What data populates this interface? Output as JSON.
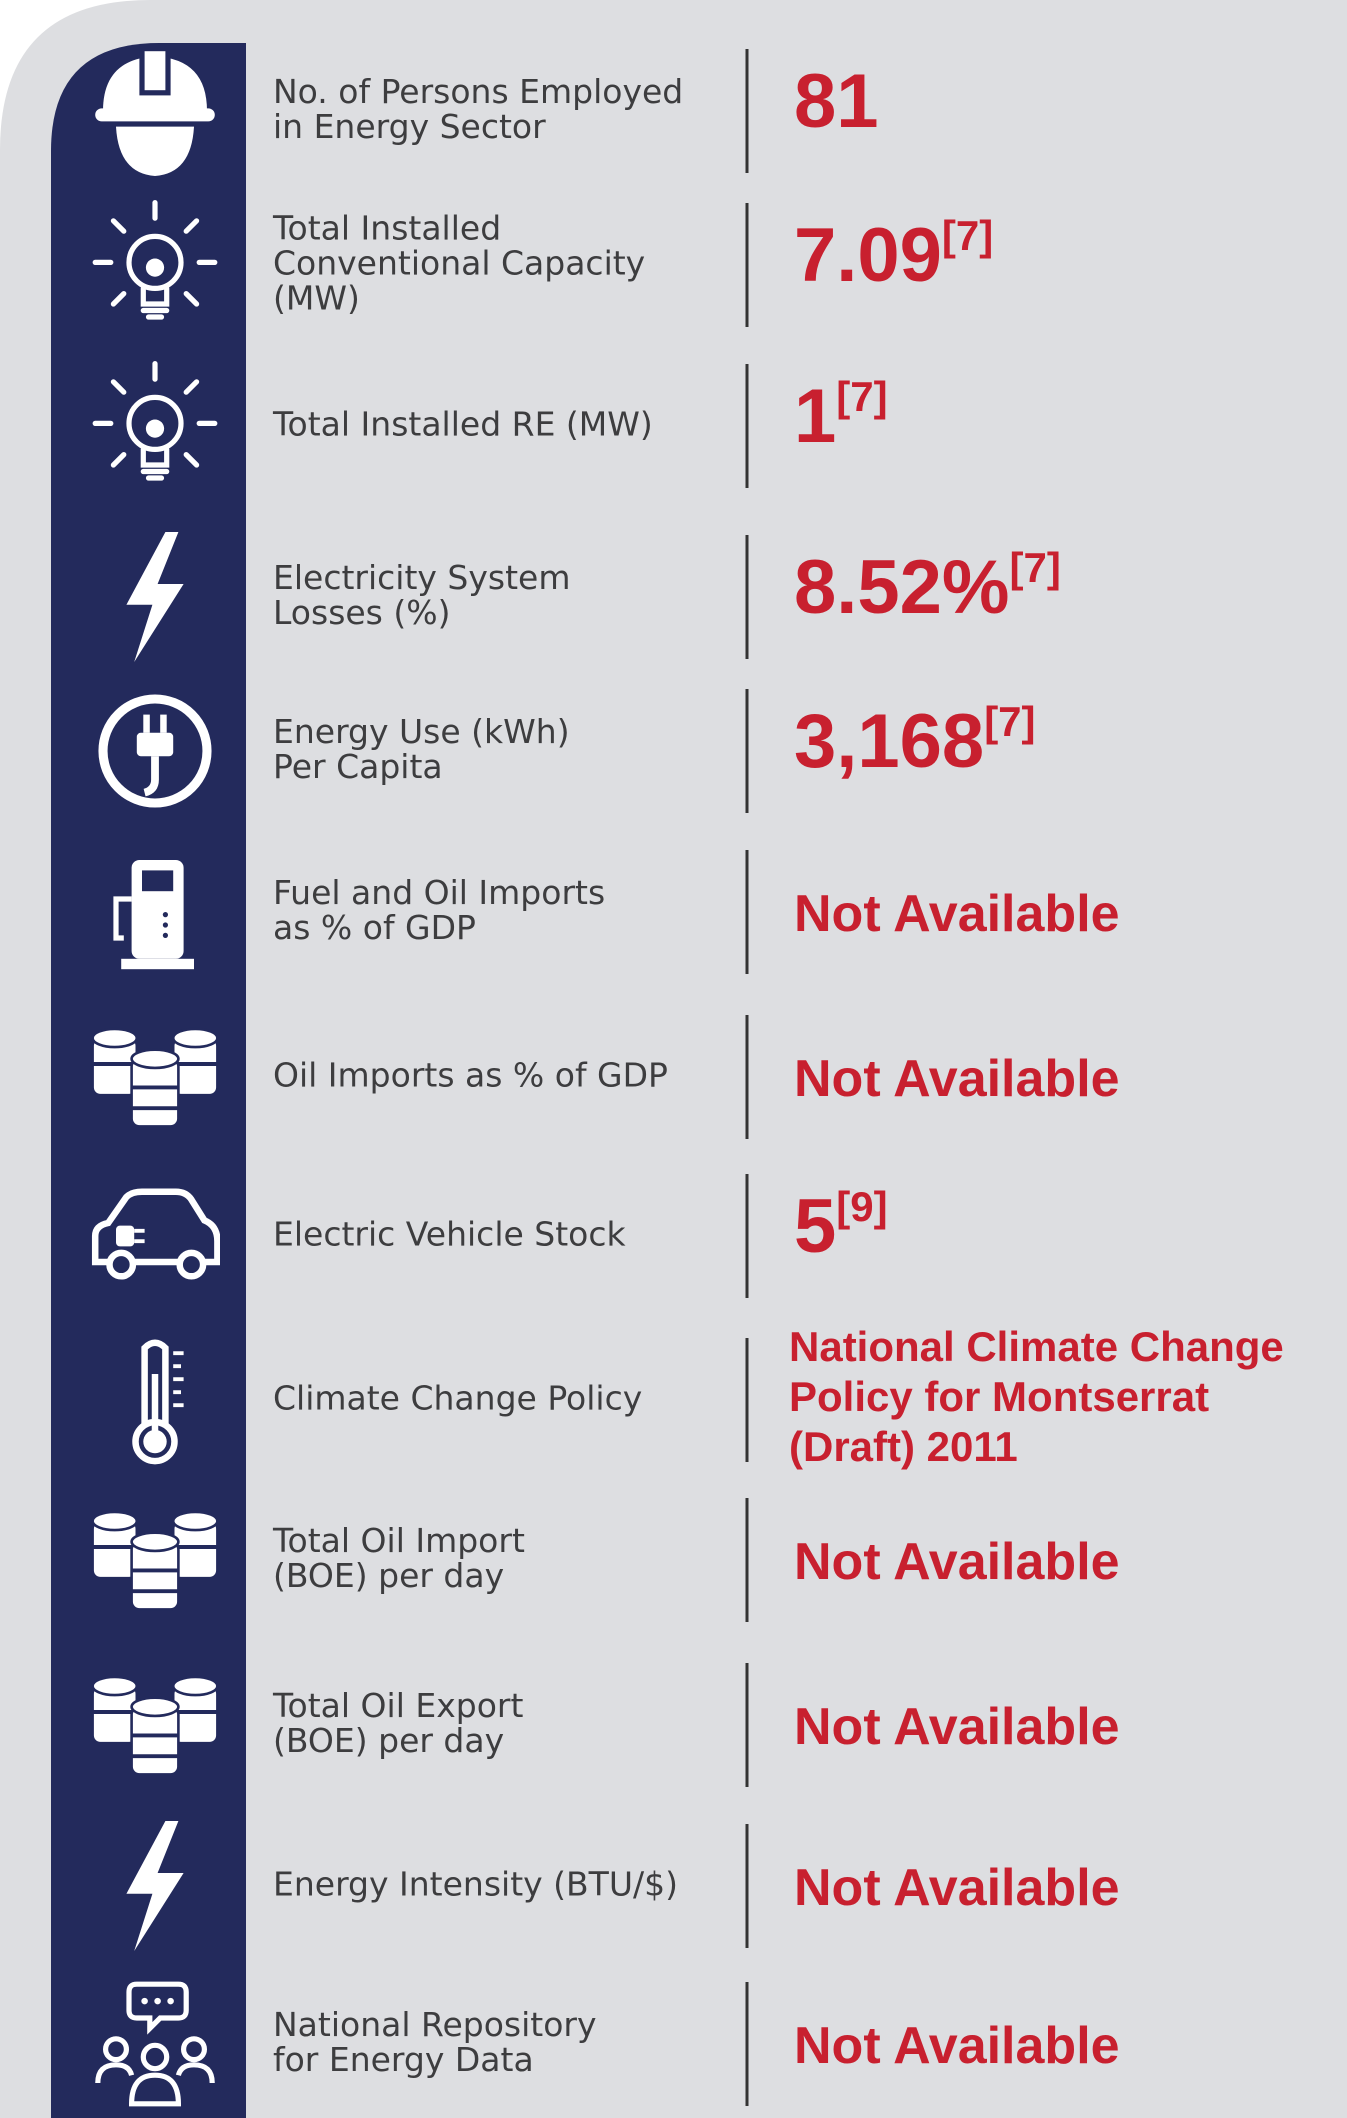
{
  "rows": [
    {
      "label": [
        "No. of Persons Employed",
        "in Energy Sector"
      ],
      "value": "81"
    },
    {
      "label": [
        "Total Installed",
        "Conventional Capacity",
        "(MW)"
      ],
      "value": "7.09",
      "note": "[7]"
    },
    {
      "label": [
        "Total Installed RE (MW)"
      ],
      "value": "1",
      "note": "[7]"
    },
    {
      "label": [
        "Electricity System",
        "Losses (%)"
      ],
      "value": "8.52%",
      "note": "[7]"
    },
    {
      "label": [
        "Energy Use (kWh)",
        "Per Capita"
      ],
      "value": "3,168",
      "note": "[7]"
    },
    {
      "label": [
        "Fuel and Oil Imports",
        "as % of GDP"
      ],
      "value": "Not Available"
    },
    {
      "label": [
        "Oil Imports as % of GDP"
      ],
      "value": "Not Available"
    },
    {
      "label": [
        "Electric Vehicle Stock"
      ],
      "value": "5",
      "note": "[9]"
    },
    {
      "label": [
        "Climate Change Policy"
      ],
      "value": [
        "National Climate Change",
        "Policy for Montserrat",
        "(Draft) 2011"
      ]
    },
    {
      "label": [
        "Total Oil Import",
        "(BOE) per day"
      ],
      "value": "Not Available"
    },
    {
      "label": [
        "Total Oil Export",
        "(BOE) per day"
      ],
      "value": "Not Available"
    },
    {
      "label": [
        "Energy Intensity (BTU/$)"
      ],
      "value": "Not Available"
    },
    {
      "label": [
        "National Repository",
        "for Energy Data"
      ],
      "value": "Not Available"
    }
  ]
}
